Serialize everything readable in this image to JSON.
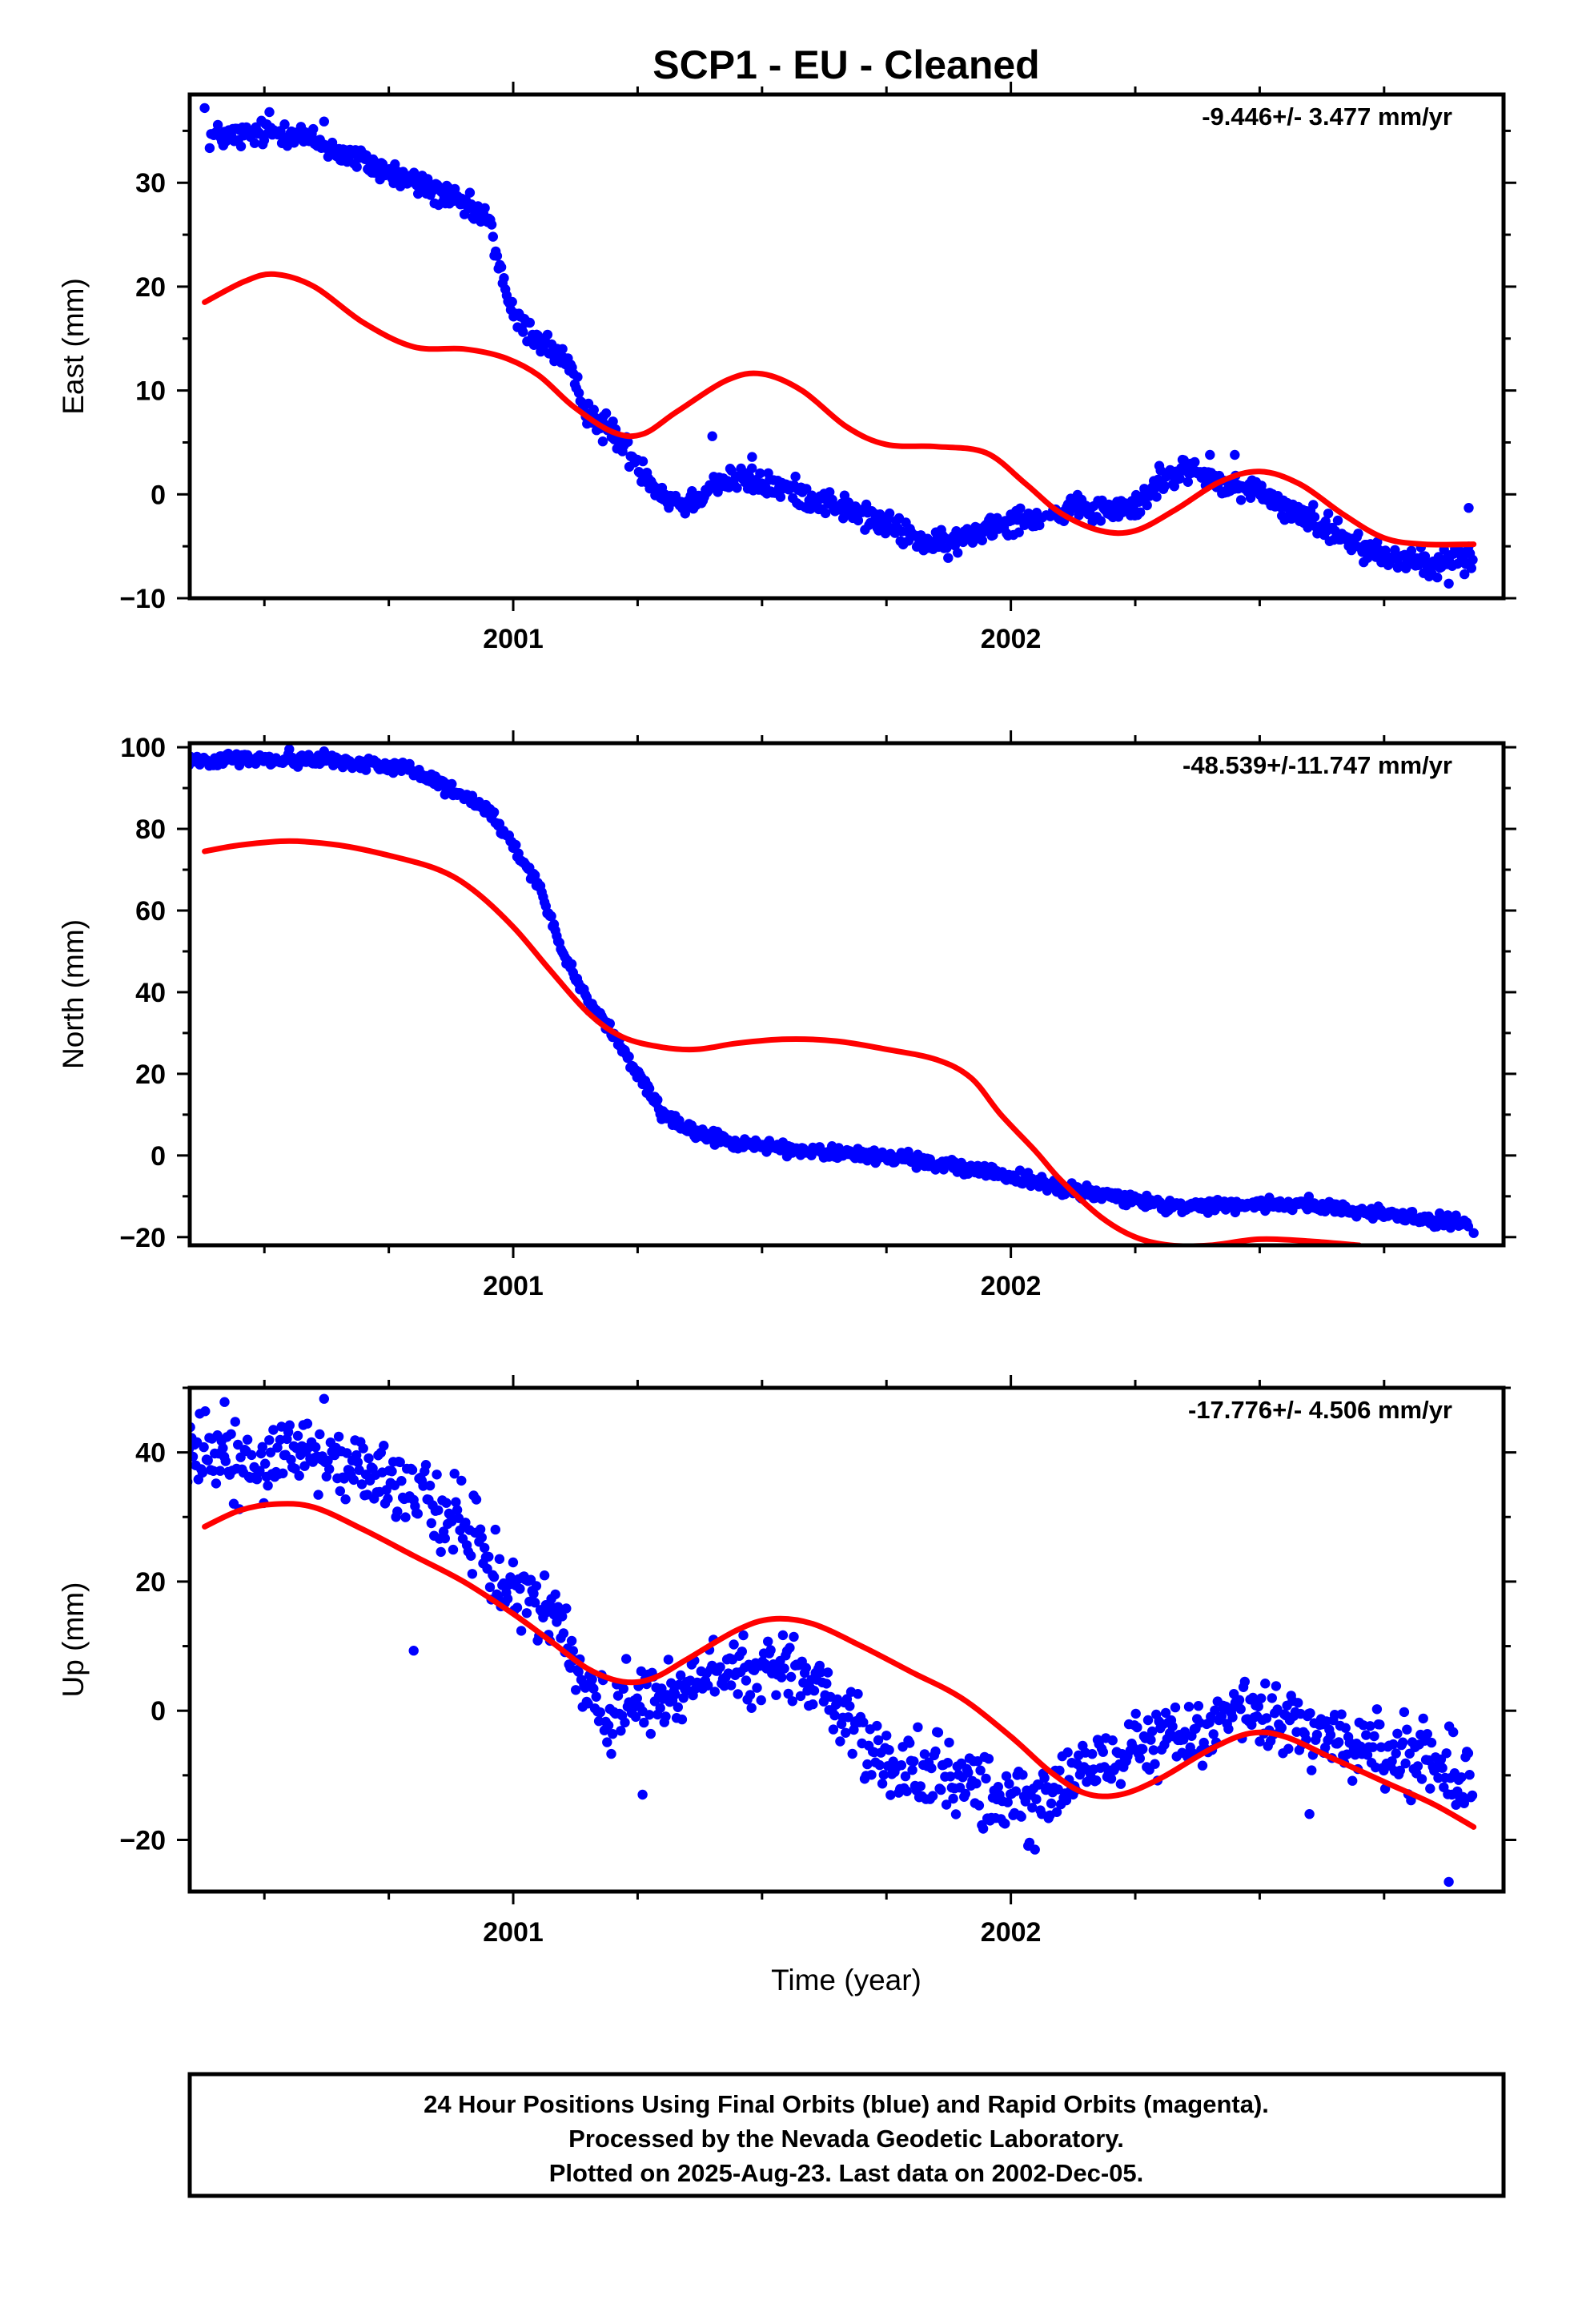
{
  "title": "SCP1  - EU - Cleaned",
  "footer": {
    "line1": "24 Hour Positions Using Final Orbits (blue) and Rapid Orbits (magenta).",
    "line2": "Processed by the Nevada Geodetic Laboratory.",
    "line3": "Plotted on 2025-Aug-23. Last data on 2002-Dec-05."
  },
  "colors": {
    "points": "#0000ff",
    "fit": "#ff0000",
    "axes": "#000000"
  },
  "chart_data": [
    {
      "type": "scatter",
      "title": "",
      "xlabel": "",
      "ylabel": "East (mm)",
      "rate": "-9.446+/- 3.477 mm/yr",
      "xlim": [
        2000.35,
        2002.99
      ],
      "ylim": [
        -10,
        38.5
      ],
      "yticks": [
        -10,
        0,
        10,
        20,
        30
      ],
      "xticks": [
        2001,
        2002
      ],
      "obs": [
        [
          2000.45,
          34.5
        ],
        [
          2000.55,
          35.0
        ],
        [
          2000.65,
          33.0
        ],
        [
          2000.75,
          31.0
        ],
        [
          2000.85,
          29.0
        ],
        [
          2000.95,
          26.5
        ],
        [
          2000.97,
          22.5
        ],
        [
          2001.0,
          17.0
        ],
        [
          2001.05,
          15.0
        ],
        [
          2001.1,
          13.0
        ],
        [
          2001.15,
          8.0
        ],
        [
          2001.2,
          6.0
        ],
        [
          2001.25,
          3.0
        ],
        [
          2001.3,
          0.0
        ],
        [
          2001.35,
          -1.0
        ],
        [
          2001.4,
          1.0
        ],
        [
          2001.45,
          1.5
        ],
        [
          2001.55,
          0.5
        ],
        [
          2001.65,
          -1.0
        ],
        [
          2001.75,
          -3.0
        ],
        [
          2001.85,
          -5.0
        ],
        [
          2001.9,
          -4.5
        ],
        [
          2001.95,
          -3.0
        ],
        [
          2002.05,
          -2.0
        ],
        [
          2002.15,
          -1.5
        ],
        [
          2002.25,
          -1.5
        ],
        [
          2002.3,
          1.5
        ],
        [
          2002.35,
          2.5
        ],
        [
          2002.45,
          0.5
        ],
        [
          2002.5,
          0.5
        ],
        [
          2002.55,
          -1.5
        ],
        [
          2002.65,
          -3.5
        ],
        [
          2002.75,
          -6.0
        ],
        [
          2002.85,
          -6.5
        ],
        [
          2002.93,
          -6.0
        ]
      ],
      "fit": [
        [
          2000.38,
          18.5
        ],
        [
          2000.46,
          20.5
        ],
        [
          2000.52,
          21.2
        ],
        [
          2000.6,
          20.0
        ],
        [
          2000.7,
          16.5
        ],
        [
          2000.8,
          14.2
        ],
        [
          2000.9,
          14.0
        ],
        [
          2000.98,
          13.2
        ],
        [
          2001.05,
          11.5
        ],
        [
          2001.12,
          8.5
        ],
        [
          2001.2,
          6.0
        ],
        [
          2001.26,
          5.8
        ],
        [
          2001.33,
          8.0
        ],
        [
          2001.43,
          11.0
        ],
        [
          2001.5,
          11.6
        ],
        [
          2001.58,
          10.0
        ],
        [
          2001.67,
          6.5
        ],
        [
          2001.75,
          4.8
        ],
        [
          2001.85,
          4.6
        ],
        [
          2001.95,
          4.0
        ],
        [
          2002.03,
          1.0
        ],
        [
          2002.1,
          -1.8
        ],
        [
          2002.18,
          -3.5
        ],
        [
          2002.25,
          -3.5
        ],
        [
          2002.33,
          -1.5
        ],
        [
          2002.42,
          1.2
        ],
        [
          2002.5,
          2.2
        ],
        [
          2002.58,
          1.0
        ],
        [
          2002.67,
          -2.0
        ],
        [
          2002.75,
          -4.2
        ],
        [
          2002.83,
          -4.8
        ],
        [
          2002.93,
          -4.8
        ]
      ],
      "scatter_sd": 0.9,
      "outliers": [
        [
          2000.38,
          37.2
        ],
        [
          2000.51,
          36.8
        ],
        [
          2000.62,
          35.9
        ],
        [
          2001.18,
          5.1
        ],
        [
          2001.4,
          5.6
        ],
        [
          2001.48,
          3.6
        ],
        [
          2002.4,
          3.8
        ],
        [
          2002.45,
          3.8
        ],
        [
          2002.88,
          -8.6
        ],
        [
          2002.92,
          -1.3
        ]
      ]
    },
    {
      "type": "scatter",
      "title": "",
      "xlabel": "",
      "ylabel": "North (mm)",
      "rate": "-48.539+/-11.747 mm/yr",
      "xlim": [
        2000.35,
        2002.99
      ],
      "ylim": [
        -22,
        101
      ],
      "yticks": [
        -20,
        0,
        20,
        40,
        60,
        80,
        100
      ],
      "xticks": [
        2001,
        2002
      ],
      "obs": [
        [
          2000.4,
          97.0
        ],
        [
          2000.5,
          97.0
        ],
        [
          2000.6,
          97.0
        ],
        [
          2000.7,
          96.0
        ],
        [
          2000.78,
          95.0
        ],
        [
          2000.85,
          91.0
        ],
        [
          2000.9,
          88.0
        ],
        [
          2000.95,
          84.0
        ],
        [
          2001.0,
          76.0
        ],
        [
          2001.05,
          66.0
        ],
        [
          2001.1,
          50.0
        ],
        [
          2001.15,
          38.0
        ],
        [
          2001.2,
          30.0
        ],
        [
          2001.25,
          20.0
        ],
        [
          2001.3,
          10.0
        ],
        [
          2001.35,
          6.0
        ],
        [
          2001.45,
          3.0
        ],
        [
          2001.6,
          1.0
        ],
        [
          2001.7,
          0.0
        ],
        [
          2001.8,
          -1.0
        ],
        [
          2001.9,
          -3.0
        ],
        [
          2002.0,
          -5.0
        ],
        [
          2002.1,
          -8.0
        ],
        [
          2002.2,
          -10.0
        ],
        [
          2002.3,
          -12.0
        ],
        [
          2002.4,
          -12.5
        ],
        [
          2002.5,
          -12.0
        ],
        [
          2002.6,
          -12.0
        ],
        [
          2002.7,
          -13.5
        ],
        [
          2002.8,
          -15.0
        ],
        [
          2002.92,
          -17.0
        ]
      ],
      "fit": [
        [
          2000.38,
          74.5
        ],
        [
          2000.45,
          76.0
        ],
        [
          2000.55,
          77.0
        ],
        [
          2000.65,
          76.0
        ],
        [
          2000.75,
          73.5
        ],
        [
          2000.85,
          70.0
        ],
        [
          2000.92,
          65.0
        ],
        [
          2001.0,
          56.0
        ],
        [
          2001.07,
          46.0
        ],
        [
          2001.15,
          35.0
        ],
        [
          2001.22,
          29.0
        ],
        [
          2001.3,
          26.5
        ],
        [
          2001.37,
          26.0
        ],
        [
          2001.45,
          27.5
        ],
        [
          2001.55,
          28.5
        ],
        [
          2001.65,
          28.0
        ],
        [
          2001.75,
          26.0
        ],
        [
          2001.85,
          23.5
        ],
        [
          2001.92,
          19.0
        ],
        [
          2001.98,
          10.0
        ],
        [
          2002.05,
          1.0
        ],
        [
          2002.1,
          -6.0
        ],
        [
          2002.18,
          -15.0
        ],
        [
          2002.25,
          -20.0
        ],
        [
          2002.32,
          -22.0
        ],
        [
          2002.4,
          -22.0
        ],
        [
          2002.5,
          -20.5
        ],
        [
          2002.6,
          -21.0
        ],
        [
          2002.7,
          -22.0
        ]
      ],
      "scatter_sd": 1.1,
      "outliers": [
        [
          2000.55,
          99.5
        ],
        [
          2000.62,
          99.0
        ],
        [
          2002.93,
          -19.0
        ]
      ]
    },
    {
      "type": "scatter",
      "title": "",
      "xlabel": "Time (year)",
      "ylabel": "Up (mm)",
      "rate": "-17.776+/- 4.506 mm/yr",
      "xlim": [
        2000.35,
        2002.99
      ],
      "ylim": [
        -28,
        50
      ],
      "yticks": [
        -20,
        0,
        20,
        40
      ],
      "xticks": [
        2001,
        2002
      ],
      "obs": [
        [
          2000.4,
          40.0
        ],
        [
          2000.5,
          38.0
        ],
        [
          2000.6,
          39.0
        ],
        [
          2000.7,
          37.0
        ],
        [
          2000.8,
          33.0
        ],
        [
          2000.9,
          29.0
        ],
        [
          2000.95,
          23.0
        ],
        [
          2001.0,
          18.0
        ],
        [
          2001.05,
          16.0
        ],
        [
          2001.1,
          13.0
        ],
        [
          2001.15,
          2.0
        ],
        [
          2001.2,
          0.0
        ],
        [
          2001.25,
          1.0
        ],
        [
          2001.3,
          2.0
        ],
        [
          2001.35,
          4.0
        ],
        [
          2001.4,
          6.0
        ],
        [
          2001.45,
          6.0
        ],
        [
          2001.5,
          6.0
        ],
        [
          2001.55,
          7.0
        ],
        [
          2001.6,
          5.0
        ],
        [
          2001.65,
          0.0
        ],
        [
          2001.7,
          -5.0
        ],
        [
          2001.75,
          -8.0
        ],
        [
          2001.85,
          -10.0
        ],
        [
          2001.95,
          -12.0
        ],
        [
          2002.0,
          -14.0
        ],
        [
          2002.05,
          -15.0
        ],
        [
          2002.1,
          -12.0
        ],
        [
          2002.15,
          -9.0
        ],
        [
          2002.2,
          -8.0
        ],
        [
          2002.3,
          -5.0
        ],
        [
          2002.4,
          -3.0
        ],
        [
          2002.45,
          -1.0
        ],
        [
          2002.5,
          0.0
        ],
        [
          2002.55,
          -2.0
        ],
        [
          2002.6,
          -3.0
        ],
        [
          2002.7,
          -6.0
        ],
        [
          2002.8,
          -7.0
        ],
        [
          2002.93,
          -10.0
        ]
      ],
      "fit": [
        [
          2000.38,
          28.5
        ],
        [
          2000.45,
          31.0
        ],
        [
          2000.52,
          32.0
        ],
        [
          2000.6,
          31.5
        ],
        [
          2000.7,
          28.0
        ],
        [
          2000.8,
          24.0
        ],
        [
          2000.9,
          20.0
        ],
        [
          2001.0,
          15.0
        ],
        [
          2001.08,
          10.5
        ],
        [
          2001.15,
          6.5
        ],
        [
          2001.22,
          4.5
        ],
        [
          2001.28,
          5.0
        ],
        [
          2001.35,
          8.0
        ],
        [
          2001.45,
          12.5
        ],
        [
          2001.52,
          14.2
        ],
        [
          2001.6,
          13.5
        ],
        [
          2001.7,
          10.0
        ],
        [
          2001.8,
          6.0
        ],
        [
          2001.9,
          2.0
        ],
        [
          2002.0,
          -4.0
        ],
        [
          2002.08,
          -9.5
        ],
        [
          2002.15,
          -12.8
        ],
        [
          2002.22,
          -13.0
        ],
        [
          2002.3,
          -10.5
        ],
        [
          2002.4,
          -6.0
        ],
        [
          2002.48,
          -3.5
        ],
        [
          2002.55,
          -4.0
        ],
        [
          2002.65,
          -7.5
        ],
        [
          2002.75,
          -11.0
        ],
        [
          2002.85,
          -14.5
        ],
        [
          2002.93,
          -18.0
        ]
      ],
      "scatter_sd": 4.0,
      "outliers": [
        [
          2000.42,
          47.8
        ],
        [
          2000.62,
          48.3
        ],
        [
          2000.8,
          9.3
        ],
        [
          2001.26,
          -13.0
        ],
        [
          2002.6,
          -16.0
        ],
        [
          2002.88,
          -26.5
        ]
      ]
    }
  ]
}
